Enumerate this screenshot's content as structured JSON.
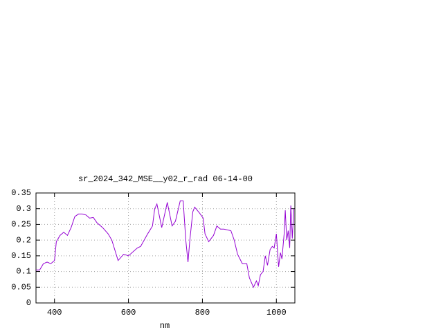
{
  "chart_data": {
    "type": "line",
    "title": "sr_2024_342_MSE__y02_r_rad 06-14-00",
    "x_label": "nm",
    "x": [
      350,
      360,
      370,
      380,
      390,
      400,
      405,
      415,
      425,
      435,
      445,
      455,
      465,
      475,
      485,
      495,
      505,
      515,
      530,
      545,
      555,
      572,
      587,
      600,
      624,
      633,
      652,
      665,
      671,
      677,
      690,
      705,
      718,
      727,
      740,
      748,
      755,
      761,
      766,
      774,
      779,
      793,
      802,
      807,
      817,
      830,
      839,
      849,
      858,
      877,
      886,
      895,
      908,
      920,
      927,
      938,
      946,
      951,
      957,
      964,
      970,
      976,
      983,
      989,
      994,
      1000,
      1006,
      1011,
      1015,
      1021,
      1024,
      1028,
      1032,
      1036,
      1039,
      1043,
      1047
    ],
    "series": [
      {
        "color": "#9400d3",
        "values": [
          0.105,
          0.105,
          0.125,
          0.13,
          0.125,
          0.135,
          0.195,
          0.215,
          0.225,
          0.215,
          0.24,
          0.275,
          0.283,
          0.283,
          0.28,
          0.27,
          0.272,
          0.255,
          0.24,
          0.22,
          0.2,
          0.135,
          0.155,
          0.15,
          0.175,
          0.18,
          0.22,
          0.245,
          0.3,
          0.315,
          0.24,
          0.32,
          0.245,
          0.26,
          0.325,
          0.325,
          0.2,
          0.13,
          0.2,
          0.29,
          0.305,
          0.285,
          0.27,
          0.22,
          0.195,
          0.215,
          0.245,
          0.235,
          0.235,
          0.23,
          0.2,
          0.155,
          0.125,
          0.125,
          0.08,
          0.05,
          0.07,
          0.055,
          0.09,
          0.1,
          0.15,
          0.12,
          0.17,
          0.18,
          0.175,
          0.22,
          0.115,
          0.16,
          0.14,
          0.22,
          0.295,
          0.2,
          0.23,
          0.175,
          0.31,
          0.205,
          0.3
        ]
      }
    ],
    "xlim": [
      350,
      1050
    ],
    "xticks": [
      400,
      600,
      800,
      1000
    ],
    "ylim": [
      0,
      0.35
    ],
    "yticks": [
      0,
      0.05,
      0.1,
      0.15,
      0.2,
      0.25,
      0.3,
      0.35
    ],
    "grid": true
  }
}
